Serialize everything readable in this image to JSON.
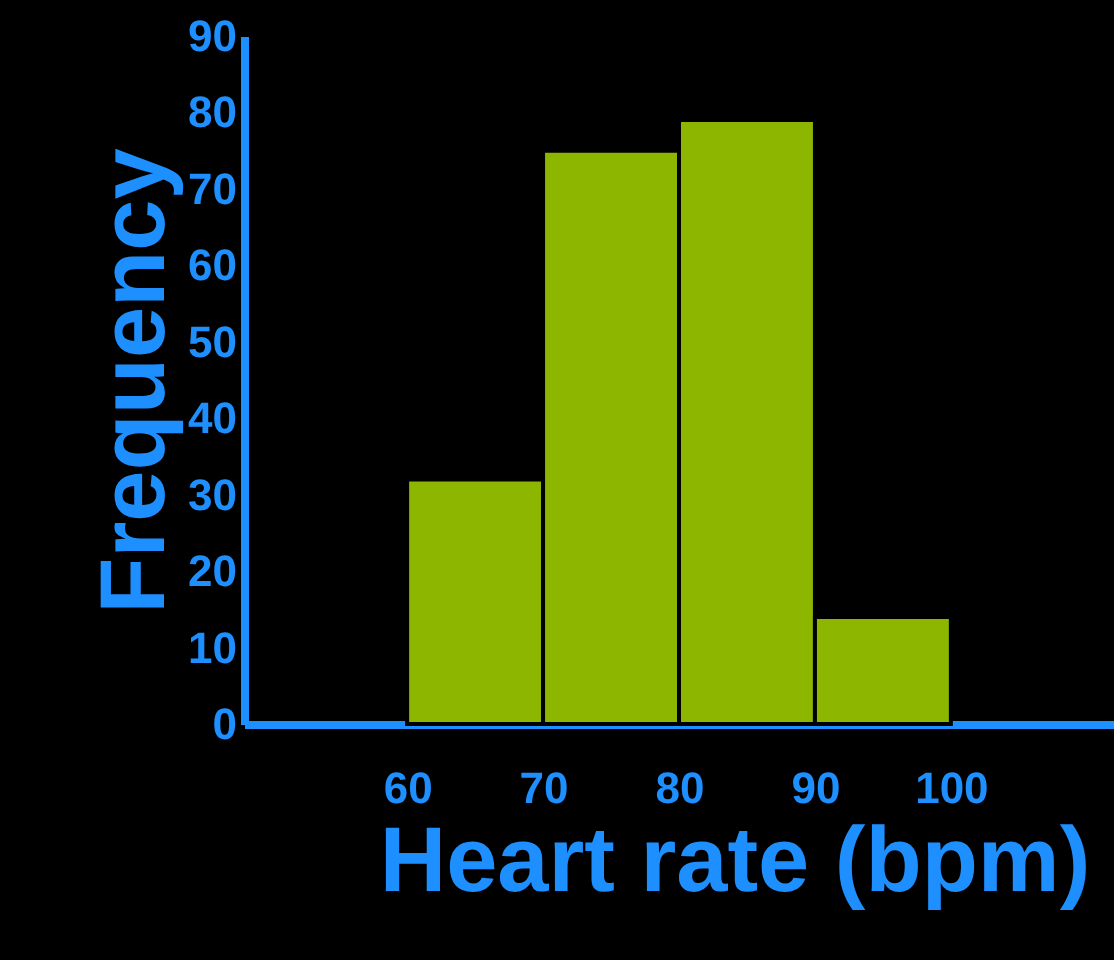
{
  "chart_data": {
    "type": "histogram",
    "xlabel": "Heart rate (bpm)",
    "ylabel": "Frequency",
    "bins": [
      60,
      70,
      80,
      90,
      100
    ],
    "values": [
      32,
      75,
      79,
      14
    ],
    "color": "#8db600",
    "xlim": [
      48,
      112
    ],
    "xticks": [
      60,
      70,
      80,
      90,
      100
    ],
    "ylim": [
      0,
      90
    ],
    "yticks": [
      0,
      10,
      20,
      30,
      40,
      50,
      60,
      70,
      80,
      90
    ],
    "grid": false
  }
}
